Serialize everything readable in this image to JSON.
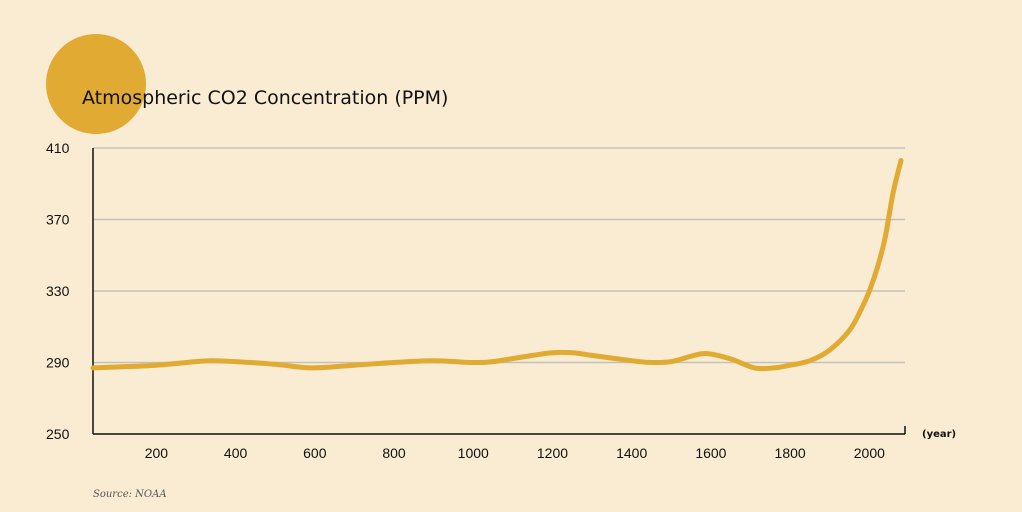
{
  "chart_data": {
    "type": "line",
    "title": "Atmospheric CO2 Concentration (PPM)",
    "xlabel": "(year)",
    "ylabel": "",
    "source": "Source: NOAA",
    "xlim": [
      40,
      2090
    ],
    "ylim": [
      250,
      410
    ],
    "x_ticks": [
      200,
      400,
      600,
      800,
      1000,
      1200,
      1400,
      1600,
      1800,
      2000
    ],
    "y_ticks": [
      250,
      290,
      330,
      370,
      410
    ],
    "grid": "horizontal",
    "legend": "none",
    "colors": {
      "line": "#e0aa33",
      "circle": "#e0aa33",
      "grid": "#c4c1bb",
      "axis": "#111111",
      "background": "#faecd2"
    },
    "series": [
      {
        "x": [
          40,
          100,
          200,
          300,
          340,
          400,
          500,
          590,
          700,
          800,
          900,
          1000,
          1050,
          1150,
          1200,
          1250,
          1300,
          1400,
          1450,
          1500,
          1550,
          1590,
          1650,
          1710,
          1760,
          1800,
          1850,
          1900,
          1950,
          1980,
          2000,
          2020,
          2040,
          2060,
          2080
        ],
        "y": [
          287,
          287.5,
          288.5,
          290.5,
          291,
          290.5,
          289,
          287,
          288.5,
          290,
          291,
          290,
          290.5,
          294,
          295.5,
          295.5,
          294,
          291,
          290,
          290.5,
          293.5,
          295,
          292,
          287,
          287,
          288.5,
          291,
          297,
          308,
          320,
          330,
          343,
          360,
          385,
          403
        ]
      }
    ]
  }
}
